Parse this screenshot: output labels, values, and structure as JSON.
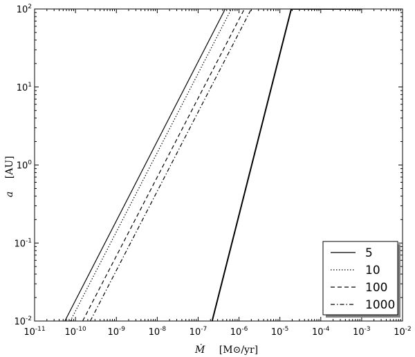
{
  "chart_data": {
    "type": "line",
    "xscale": "log",
    "yscale": "log",
    "xlim": [
      1e-11,
      0.01
    ],
    "ylim": [
      0.01,
      100
    ],
    "xlabel_symbol": "Ṁ",
    "xlabel_unit": "[M⊙/yr]",
    "ylabel_symbol": "a",
    "ylabel_unit": "[AU]",
    "x_ticks": [
      1e-11,
      1e-10,
      1e-09,
      1e-08,
      1e-07,
      1e-06,
      1e-05,
      0.0001,
      0.001,
      0.01
    ],
    "x_tick_exponents": [
      "-11",
      "-10",
      "-9",
      "-8",
      "-7",
      "-6",
      "-5",
      "-4",
      "-3",
      "-2"
    ],
    "y_ticks": [
      0.01,
      0.1,
      1,
      10,
      100
    ],
    "y_tick_exponents": [
      "-2",
      "-1",
      "0",
      "1",
      "2"
    ],
    "tick_base": "10",
    "grid": false,
    "legend_position": "bottom-right",
    "series": [
      {
        "name": "5",
        "style": "solid",
        "x": [
          5.5e-11,
          4.6e-07
        ],
        "y": [
          0.01,
          100
        ]
      },
      {
        "name": "10",
        "style": "dotted",
        "x": [
          7.5e-11,
          6.5e-07
        ],
        "y": [
          0.01,
          100
        ]
      },
      {
        "name": "100",
        "style": "dashed",
        "x": [
          1.5e-10,
          1.35e-06
        ],
        "y": [
          0.01,
          100
        ]
      },
      {
        "name": "1000",
        "style": "dashdot",
        "x": [
          2.3e-10,
          2e-06
        ],
        "y": [
          0.01,
          100
        ]
      },
      {
        "name": "",
        "style": "solid-thick",
        "x": [
          2.2e-07,
          1.9e-05
        ],
        "y": [
          0.01,
          100
        ]
      },
      {
        "name": "",
        "style": "solid-thick",
        "x": [
          1.9e-05,
          0.001
        ],
        "y": [
          100,
          100
        ]
      }
    ]
  }
}
